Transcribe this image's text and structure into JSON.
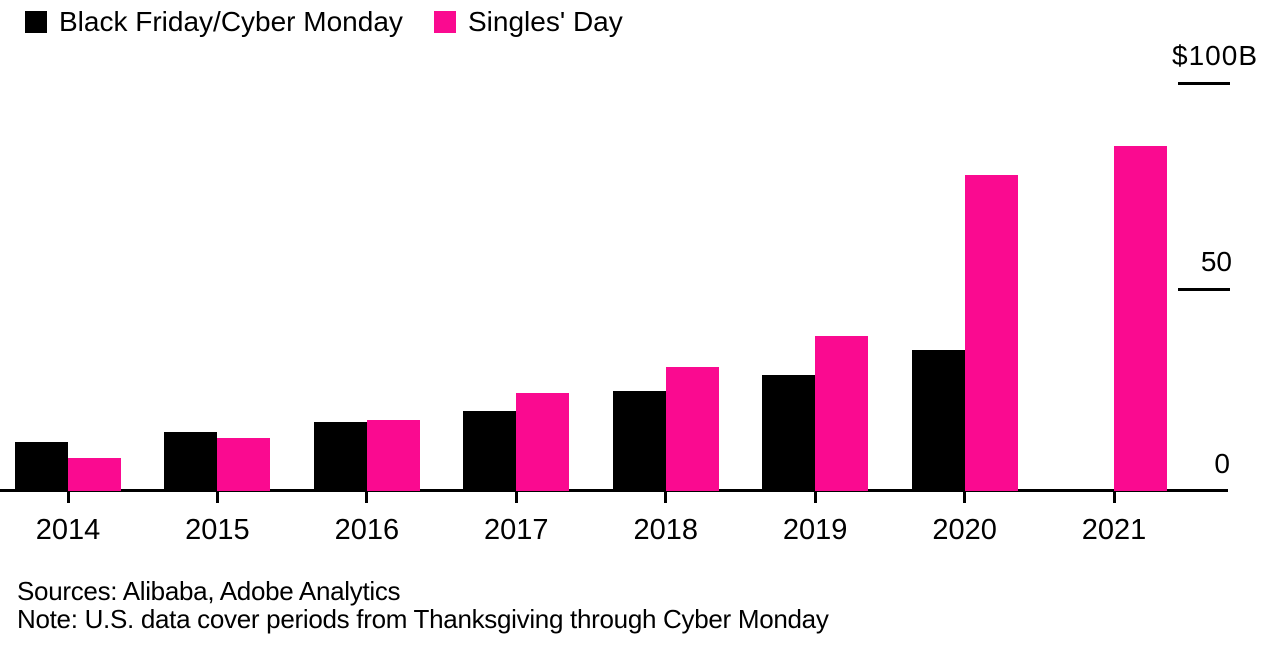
{
  "legend": [
    {
      "key": "black-friday-cyber-monday",
      "label": "Black Friday/Cyber Monday",
      "color": "#000000"
    },
    {
      "key": "singles-day",
      "label": "Singles' Day",
      "color": "#fa0a90"
    }
  ],
  "y_axis": {
    "labels": [
      "$100B",
      "50",
      "0"
    ]
  },
  "footer": {
    "sources": "Sources: Alibaba, Adobe Analytics",
    "note": "Note: U.S. data cover periods from Thanksgiving through Cyber Monday"
  },
  "chart_data": {
    "type": "bar",
    "title": "",
    "categories": [
      "2014",
      "2015",
      "2016",
      "2017",
      "2018",
      "2019",
      "2020",
      "2021"
    ],
    "series": [
      {
        "key": "black-friday-cyber-monday",
        "name": "Black Friday/Cyber Monday",
        "color": "#000000",
        "values": [
          12,
          14.5,
          17,
          19.5,
          24.5,
          28.5,
          34.5,
          null
        ]
      },
      {
        "key": "singles-day",
        "name": "Singles' Day",
        "color": "#fa0a90",
        "values": [
          8,
          13,
          17.3,
          24,
          30.5,
          38,
          77.5,
          84.5
        ]
      }
    ],
    "xlabel": "",
    "ylabel": "$B",
    "ylim": [
      0,
      100
    ],
    "yticks": [
      0,
      50,
      100
    ],
    "ytick_labels": [
      "0",
      "50",
      "$100B"
    ],
    "grid": false,
    "legend_position": "top-left",
    "axis_side": "right"
  }
}
